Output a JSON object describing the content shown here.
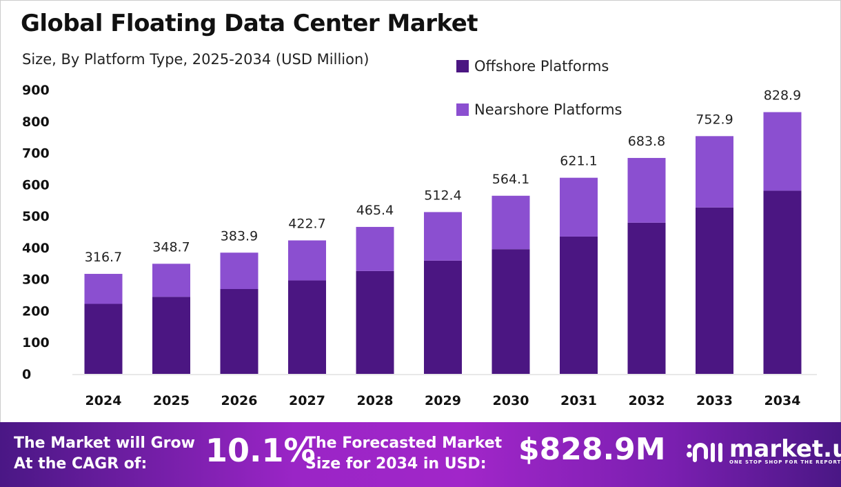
{
  "chart_data": {
    "type": "bar",
    "stacked": true,
    "title": "Global Floating Data Center Market",
    "subtitle": "Size, By Platform Type, 2025-2034 (USD Million)",
    "categories": [
      "2024",
      "2025",
      "2026",
      "2027",
      "2028",
      "2029",
      "2030",
      "2031",
      "2032",
      "2033",
      "2034"
    ],
    "series": [
      {
        "name": "Offshore Platforms",
        "color": "#4b1682",
        "values": [
          221.7,
          244.1,
          268.7,
          295.9,
          325.8,
          358.7,
          394.9,
          434.8,
          478.7,
          527.0,
          580.2
        ]
      },
      {
        "name": "Nearshore Platforms",
        "color": "#8b4fd0",
        "values": [
          95.0,
          104.6,
          115.2,
          126.8,
          139.6,
          153.7,
          169.2,
          186.3,
          205.1,
          225.9,
          248.7
        ]
      }
    ],
    "totals": [
      "316.7",
      "348.7",
      "383.9",
      "422.7",
      "465.4",
      "512.4",
      "564.1",
      "621.1",
      "683.8",
      "752.9",
      "828.9"
    ],
    "yticks": [
      "0",
      "100",
      "200",
      "300",
      "400",
      "500",
      "600",
      "700",
      "800",
      "900"
    ],
    "ylim": [
      0,
      900
    ],
    "grid": false,
    "legend_placement": "top-right"
  },
  "footer": {
    "cagr_label_1": "The Market will Grow",
    "cagr_label_2": "At the CAGR of:",
    "cagr_value": "10.1%",
    "forecast_label_1": "The Forecasted Market",
    "forecast_label_2": "Size for 2034 in USD:",
    "forecast_value": "$828.9M",
    "logo_text": "market.us",
    "logo_tagline": "ONE STOP SHOP FOR THE REPORTS"
  }
}
